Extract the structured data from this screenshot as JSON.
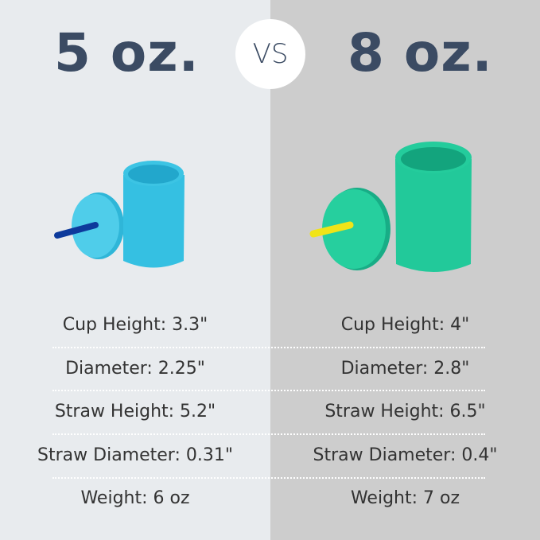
{
  "left": {
    "title": "5 oz.",
    "cup_color": "#3cc4e4",
    "straw_color": "#0d3a9c",
    "specs": [
      "Cup Height: 3.3\"",
      "Diameter: 2.25\"",
      "Straw Height: 5.2\"",
      "Straw Diameter: 0.31\"",
      "Weight: 6 oz"
    ]
  },
  "right": {
    "title": "8 oz.",
    "cup_color": "#22c99a",
    "straw_color": "#f0e418",
    "specs": [
      "Cup Height: 4\"",
      "Diameter: 2.8\"",
      "Straw Height: 6.5\"",
      "Straw Diameter: 0.4\"",
      "Weight: 7 oz"
    ]
  },
  "vs_label": "VS",
  "title_color": "#3b4b63"
}
